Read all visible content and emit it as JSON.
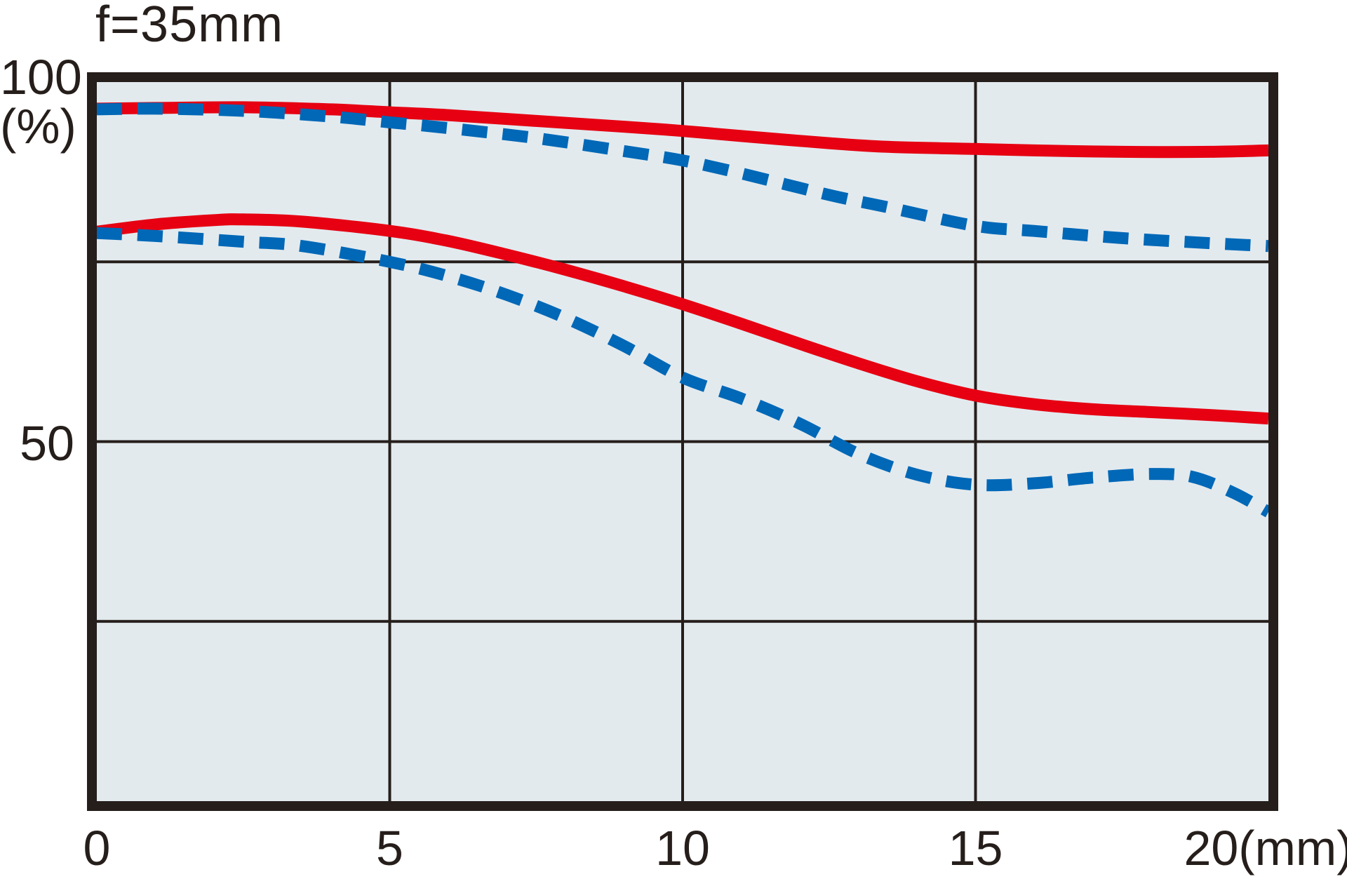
{
  "chart_data": {
    "type": "line",
    "title": "f=35mm",
    "grid": true,
    "legend": "none",
    "colors": {
      "plot_background": "#e3eaee",
      "line_black": "#251e1b",
      "series_red": "#e60012",
      "series_blue": "#0068b7",
      "page_background": "#ffffff"
    },
    "x_axis": {
      "range": [
        0,
        20
      ],
      "ticks": [
        {
          "value": 0,
          "label": "0"
        },
        {
          "value": 5,
          "label": "5"
        },
        {
          "value": 10,
          "label": "10"
        },
        {
          "value": 15,
          "label": "15"
        },
        {
          "value": 20,
          "label": "20(mm)"
        }
      ]
    },
    "y_axis": {
      "range": [
        0,
        100
      ],
      "unit": "(%)",
      "ticks": [
        {
          "value": 100,
          "label": "100"
        },
        {
          "value": 50,
          "label": "50"
        }
      ],
      "gridlines": [
        25,
        50,
        75
      ]
    },
    "series": [
      {
        "name": "red-solid-upper",
        "color": "#e60012",
        "style": "solid",
        "points": [
          [
            0,
            96.3
          ],
          [
            1,
            96.4
          ],
          [
            2.5,
            96.5
          ],
          [
            4,
            96.2
          ],
          [
            5,
            95.8
          ],
          [
            6,
            95.4
          ],
          [
            7.5,
            94.6
          ],
          [
            9,
            93.8
          ],
          [
            10,
            93.2
          ],
          [
            11,
            92.5
          ],
          [
            12.5,
            91.5
          ],
          [
            13.5,
            91.0
          ],
          [
            15,
            90.7
          ],
          [
            16,
            90.5
          ],
          [
            17.5,
            90.3
          ],
          [
            19,
            90.3
          ],
          [
            20,
            90.5
          ]
        ]
      },
      {
        "name": "red-solid-lower",
        "color": "#e60012",
        "style": "solid",
        "points": [
          [
            0,
            79.2
          ],
          [
            1,
            80.2
          ],
          [
            2,
            80.8
          ],
          [
            2.5,
            80.9
          ],
          [
            3.5,
            80.6
          ],
          [
            5,
            79.3
          ],
          [
            6,
            77.9
          ],
          [
            7,
            76.0
          ],
          [
            8,
            73.9
          ],
          [
            9,
            71.6
          ],
          [
            10,
            69.1
          ],
          [
            11,
            66.4
          ],
          [
            12,
            63.6
          ],
          [
            13,
            60.9
          ],
          [
            14,
            58.4
          ],
          [
            15,
            56.4
          ],
          [
            16,
            55.2
          ],
          [
            17,
            54.5
          ],
          [
            18,
            54.1
          ],
          [
            19,
            53.7
          ],
          [
            20,
            53.2
          ]
        ]
      },
      {
        "name": "blue-dashed-upper",
        "color": "#0068b7",
        "style": "dashed",
        "points": [
          [
            0,
            96.2
          ],
          [
            1,
            96.3
          ],
          [
            2.5,
            96.0
          ],
          [
            4,
            95.2
          ],
          [
            5,
            94.4
          ],
          [
            6,
            93.6
          ],
          [
            7.5,
            92.2
          ],
          [
            9,
            90.4
          ],
          [
            10,
            89.1
          ],
          [
            11,
            87.3
          ],
          [
            12.5,
            84.3
          ],
          [
            13.5,
            82.6
          ],
          [
            15,
            80.0
          ],
          [
            16,
            79.3
          ],
          [
            17.5,
            78.3
          ],
          [
            19,
            77.6
          ],
          [
            20,
            77.2
          ]
        ]
      },
      {
        "name": "blue-dashed-lower",
        "color": "#0068b7",
        "style": "dashed",
        "points": [
          [
            0,
            79.0
          ],
          [
            1,
            78.6
          ],
          [
            2.5,
            77.8
          ],
          [
            3.5,
            77.2
          ],
          [
            5,
            75.0
          ],
          [
            6,
            73.0
          ],
          [
            7,
            70.4
          ],
          [
            8,
            67.2
          ],
          [
            9,
            63.3
          ],
          [
            10,
            58.9
          ],
          [
            11,
            56.0
          ],
          [
            12,
            52.5
          ],
          [
            13,
            48.3
          ],
          [
            14,
            45.4
          ],
          [
            15,
            44.0
          ],
          [
            16,
            44.2
          ],
          [
            17,
            45.0
          ],
          [
            18,
            45.5
          ],
          [
            18.7,
            45.1
          ],
          [
            19.4,
            42.9
          ],
          [
            20,
            40.2
          ]
        ]
      }
    ]
  }
}
